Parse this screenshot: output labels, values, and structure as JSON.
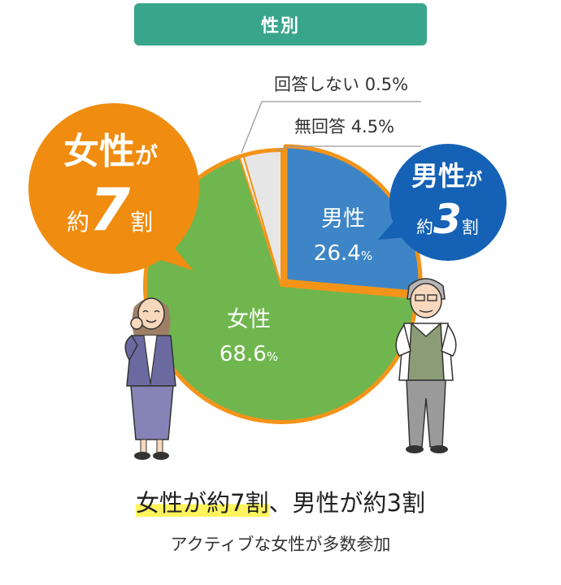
{
  "header": {
    "title": "性別"
  },
  "chart_data": {
    "type": "pie",
    "title": "性別",
    "slices": [
      {
        "name": "男性",
        "value": 26.4,
        "color": "#3d85c6"
      },
      {
        "name": "女性",
        "value": 68.6,
        "color": "#70b64e"
      },
      {
        "name": "回答しない",
        "value": 0.5,
        "color": "#f3f3f3"
      },
      {
        "name": "無回答",
        "value": 4.5,
        "color": "#e6e6e6"
      }
    ],
    "unit": "%",
    "start": "12 o'clock",
    "direction": "clockwise",
    "outline_color": "#f39419"
  },
  "callouts": {
    "no_answer_declined": {
      "label": "回答しない",
      "value": "0.5%"
    },
    "no_response": {
      "label": "無回答",
      "value": "4.5%"
    }
  },
  "badges": {
    "female": {
      "line1": "女性",
      "line1_small": "が",
      "line2_prefix": "約",
      "line2_number": "7",
      "line2_suffix": "割",
      "color": "#f08c0f"
    },
    "male": {
      "line1": "男性",
      "line1_small": "が",
      "line2_prefix": "約",
      "line2_number": "3",
      "line2_suffix": "割",
      "color": "#1561b5"
    }
  },
  "footer": {
    "headline_highlight": "女性が約7割",
    "headline_rest": "、男性が約3割",
    "subline": "アクティブな女性が多数参加"
  }
}
